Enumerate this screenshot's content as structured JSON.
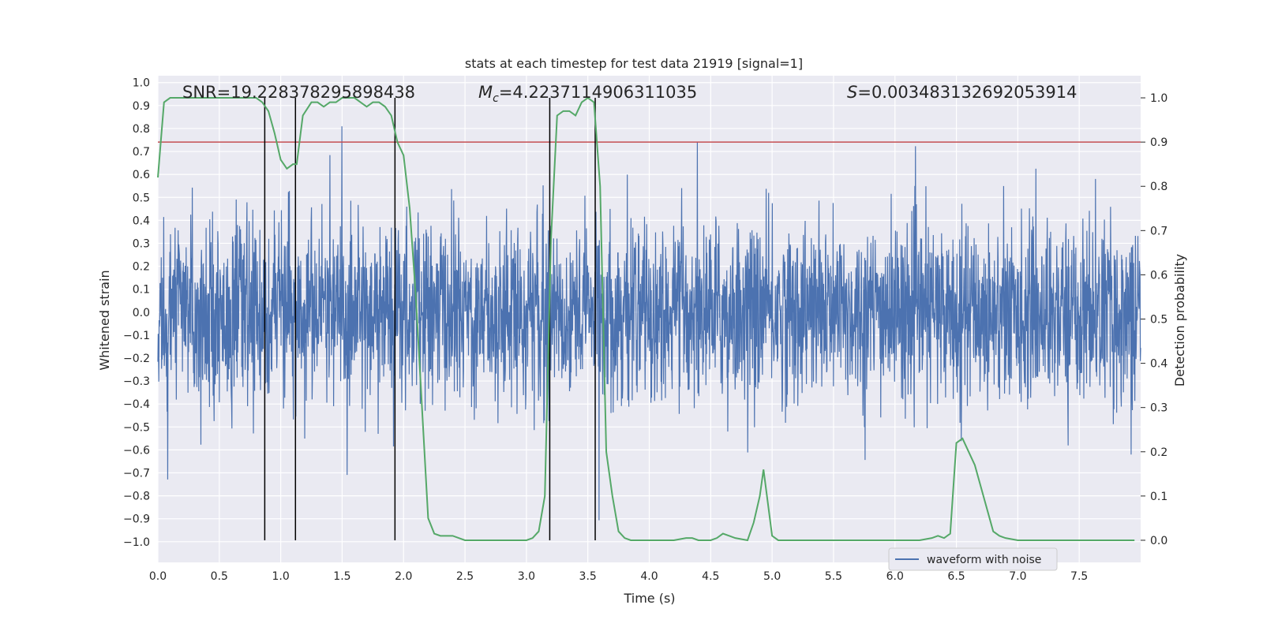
{
  "chart_data": {
    "type": "line",
    "title": "stats at each timestep for test data 21919 [signal=1]",
    "xlabel": "Time (s)",
    "ylabel_left": "Whitened strain",
    "ylabel_right": "Detection probability",
    "xlim": [
      0.0,
      8.0
    ],
    "ylim_left": [
      -1.09,
      1.03
    ],
    "ylim_right": [
      -0.05,
      1.05
    ],
    "grid": true,
    "x_ticks": [
      "0.0",
      "0.5",
      "1.0",
      "1.5",
      "2.0",
      "2.5",
      "3.0",
      "3.5",
      "4.0",
      "4.5",
      "5.0",
      "5.5",
      "6.0",
      "6.5",
      "7.0",
      "7.5"
    ],
    "y_ticks_left": [
      "1.0",
      "0.9",
      "0.8",
      "0.7",
      "0.6",
      "0.5",
      "0.4",
      "0.3",
      "0.2",
      "0.1",
      "0.0",
      "−0.1",
      "−0.2",
      "−0.3",
      "−0.4",
      "−0.5",
      "−0.6",
      "−0.7",
      "−0.8",
      "−0.9",
      "−1.0"
    ],
    "y_ticks_right": [
      "1.0",
      "0.9",
      "0.8",
      "0.7",
      "0.6",
      "0.5",
      "0.4",
      "0.3",
      "0.2",
      "0.1",
      "0.0"
    ],
    "annotations": {
      "snr": "SNR=19.228378295898438",
      "mc_symbol": "M",
      "mc_sub": "c",
      "mc_value": "=4.2237114906311035",
      "s_symbol": "S",
      "s_value": "=0.003483132692053914"
    },
    "legend": {
      "label": "waveform with noise",
      "placement": "lower-right"
    },
    "colors": {
      "waveform": "#4c72b0",
      "probability": "#55a868",
      "threshold": "#c44e52",
      "markers": "#000000",
      "plot_bg": "#eaeaf2",
      "grid": "#ffffff"
    },
    "waveform": {
      "name": "waveform with noise",
      "x_range": [
        0.0,
        8.0
      ],
      "typical_amplitude": 0.45,
      "peak_amplitude": 1.0
    },
    "threshold_probability": 0.9,
    "vertical_markers_x": [
      0.87,
      1.12,
      1.93,
      3.19,
      3.56
    ],
    "probability": {
      "x": [
        0.0,
        0.05,
        0.1,
        0.15,
        0.2,
        0.3,
        0.4,
        0.5,
        0.6,
        0.7,
        0.75,
        0.8,
        0.85,
        0.9,
        0.95,
        1.0,
        1.05,
        1.1,
        1.13,
        1.18,
        1.25,
        1.3,
        1.35,
        1.4,
        1.45,
        1.5,
        1.55,
        1.6,
        1.65,
        1.7,
        1.75,
        1.8,
        1.85,
        1.9,
        1.95,
        2.0,
        2.05,
        2.1,
        2.15,
        2.2,
        2.25,
        2.3,
        2.35,
        2.4,
        2.5,
        2.6,
        2.7,
        2.8,
        2.9,
        3.0,
        3.05,
        3.1,
        3.15,
        3.2,
        3.25,
        3.3,
        3.35,
        3.4,
        3.45,
        3.5,
        3.55,
        3.6,
        3.65,
        3.7,
        3.75,
        3.8,
        3.85,
        3.9,
        4.0,
        4.1,
        4.2,
        4.3,
        4.35,
        4.4,
        4.5,
        4.55,
        4.6,
        4.65,
        4.7,
        4.8,
        4.85,
        4.9,
        4.93,
        5.0,
        5.05,
        5.1,
        5.2,
        5.3,
        5.5,
        6.0,
        6.2,
        6.3,
        6.35,
        6.4,
        6.45,
        6.5,
        6.55,
        6.6,
        6.65,
        6.7,
        6.75,
        6.8,
        6.85,
        6.9,
        7.0,
        7.2,
        7.5,
        7.8,
        7.95
      ],
      "y": [
        0.82,
        0.99,
        1.0,
        1.0,
        1.0,
        1.0,
        1.0,
        1.0,
        1.0,
        1.0,
        1.0,
        1.0,
        0.99,
        0.97,
        0.92,
        0.86,
        0.84,
        0.85,
        0.85,
        0.96,
        0.99,
        0.99,
        0.98,
        0.99,
        0.99,
        1.0,
        1.0,
        1.0,
        0.99,
        0.98,
        0.99,
        0.99,
        0.98,
        0.96,
        0.9,
        0.87,
        0.75,
        0.55,
        0.3,
        0.05,
        0.015,
        0.01,
        0.01,
        0.01,
        0.0,
        0.0,
        0.0,
        0.0,
        0.0,
        0.0,
        0.005,
        0.02,
        0.1,
        0.68,
        0.96,
        0.97,
        0.97,
        0.96,
        0.99,
        1.0,
        0.99,
        0.8,
        0.2,
        0.1,
        0.02,
        0.005,
        0.0,
        0.0,
        0.0,
        0.0,
        0.0,
        0.005,
        0.005,
        0.0,
        0.0,
        0.005,
        0.015,
        0.01,
        0.005,
        0.0,
        0.04,
        0.1,
        0.16,
        0.01,
        0.0,
        0.0,
        0.0,
        0.0,
        0.0,
        0.0,
        0.0,
        0.005,
        0.01,
        0.005,
        0.015,
        0.22,
        0.23,
        0.2,
        0.17,
        0.12,
        0.07,
        0.02,
        0.01,
        0.005,
        0.0,
        0.0,
        0.0,
        0.0,
        0.0
      ]
    }
  }
}
